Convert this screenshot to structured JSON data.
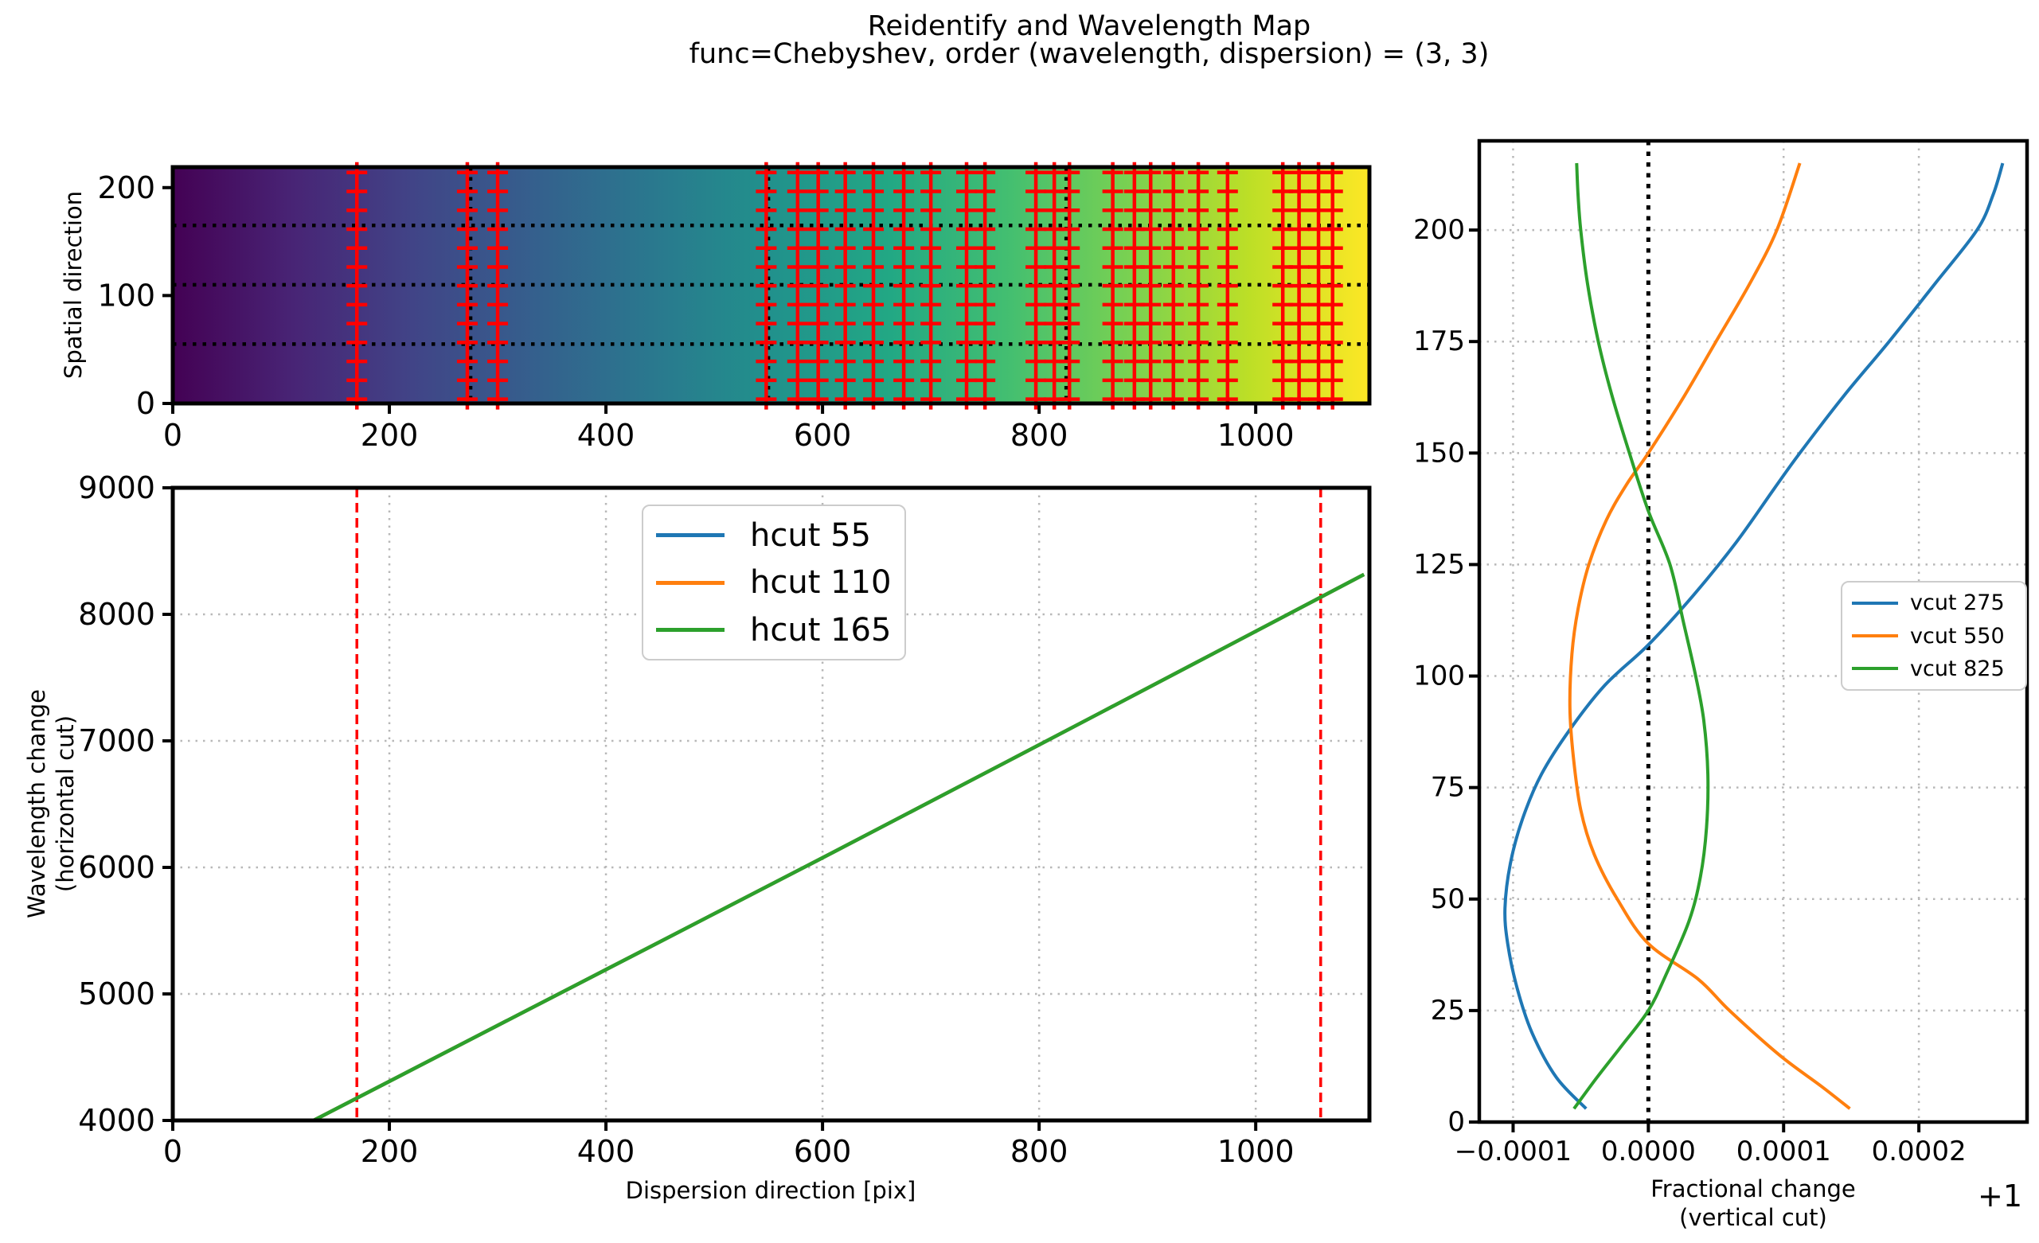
{
  "title": {
    "line1": "Reidentify and Wavelength Map",
    "line2": "func=Chebyshev, order (wavelength, dispersion) = (3, 3)"
  },
  "colors": {
    "blue": "#1f77b4",
    "orange": "#ff7f0e",
    "green": "#2ca02c",
    "red": "#ff0000",
    "grid_gray": "#b8b8b8",
    "black": "#000000",
    "legend_border": "#cccccc",
    "viridis": [
      "#440154",
      "#482475",
      "#414487",
      "#355f8d",
      "#2a788e",
      "#21918c",
      "#22a884",
      "#44bf70",
      "#7ad151",
      "#bddf26",
      "#fde725"
    ]
  },
  "axes": {
    "map": {
      "ylabel": "Spatial direction",
      "xticklabels": [
        "0",
        "200",
        "400",
        "600",
        "800",
        "1000"
      ],
      "yticklabels": [
        "0",
        "100",
        "200"
      ]
    },
    "wave": {
      "xlabel": "Dispersion direction [pix]",
      "ylabel_line1": "Wavelength change",
      "ylabel_line2": "(horizontal cut)",
      "xticklabels": [
        "0",
        "200",
        "400",
        "600",
        "800",
        "1000"
      ],
      "yticklabels": [
        "4000",
        "5000",
        "6000",
        "7000",
        "8000",
        "9000"
      ],
      "legend": [
        "hcut 55",
        "hcut 110",
        "hcut 165"
      ]
    },
    "frac": {
      "xlabel_line1": "Fractional change",
      "xlabel_line2": "(vertical cut)",
      "xticklabels": [
        "−0.0001",
        "0.0000",
        "0.0001",
        "0.0002"
      ],
      "yticklabels": [
        "0",
        "25",
        "50",
        "75",
        "100",
        "125",
        "150",
        "175",
        "200"
      ],
      "legend": [
        "vcut 275",
        "vcut 550",
        "vcut 825"
      ],
      "offset_text": "+1"
    }
  },
  "chart_data": [
    {
      "id": "reidentify_wavelength_map",
      "type": "heatmap",
      "ylabel": "Spatial direction",
      "xlim": [
        0,
        1105
      ],
      "ylim": [
        0,
        219
      ],
      "xticks": [
        0,
        200,
        400,
        600,
        800,
        1000
      ],
      "yticks": [
        0,
        100,
        200
      ],
      "colormap": "viridis",
      "gradient_direction": "dark purple at x=0 to yellow at x=1100",
      "identified_line_x": [
        170,
        272,
        300,
        548,
        577,
        596,
        621,
        647,
        675,
        700,
        733,
        750,
        797,
        814,
        828,
        868,
        888,
        903,
        924,
        947,
        974,
        1025,
        1040,
        1058,
        1071
      ],
      "marker": "red plus columns",
      "marker_y_start": 4,
      "marker_y_step": 17.5,
      "marker_y_count": 13,
      "hcut_y": [
        55,
        110,
        165
      ],
      "vcut_x": [
        275,
        550,
        825
      ]
    },
    {
      "id": "wavelength_change_horizontal_cut",
      "type": "line",
      "xlabel": "Dispersion direction [pix]",
      "ylabel": "Wavelength change (horizontal cut)",
      "xlim": [
        0,
        1105
      ],
      "ylim": [
        4000,
        9000
      ],
      "xticks": [
        0,
        200,
        400,
        600,
        800,
        1000
      ],
      "yticks": [
        4000,
        5000,
        6000,
        7000,
        8000,
        9000
      ],
      "grid": true,
      "red_dashed_x": [
        170,
        1060
      ],
      "note": "three hcut curves overlap almost exactly; green drawn on top",
      "series": [
        {
          "name": "hcut 55",
          "color": "#1f77b4",
          "points": [
            [
              130,
              4000
            ],
            [
              370,
              5060
            ],
            [
              610,
              6120
            ],
            [
              855,
              7215
            ],
            [
              1100,
              8315
            ]
          ]
        },
        {
          "name": "hcut 110",
          "color": "#ff7f0e",
          "points": [
            [
              130,
              4000
            ],
            [
              370,
              5060
            ],
            [
              610,
              6120
            ],
            [
              855,
              7215
            ],
            [
              1100,
              8315
            ]
          ]
        },
        {
          "name": "hcut 165",
          "color": "#2ca02c",
          "points": [
            [
              130,
              4000
            ],
            [
              370,
              5060
            ],
            [
              610,
              6120
            ],
            [
              855,
              7215
            ],
            [
              1100,
              8315
            ]
          ]
        }
      ],
      "legend_position": "upper center"
    },
    {
      "id": "fractional_change_vertical_cut",
      "type": "line",
      "xlabel": "Fractional change (vertical cut)",
      "x_offset_label": "+1",
      "x_unit": 0.0001,
      "xlim": [
        -1.25,
        2.8
      ],
      "ylim": [
        0,
        220
      ],
      "xticks": [
        -1,
        0,
        1,
        2
      ],
      "yticks": [
        0,
        25,
        50,
        75,
        100,
        125,
        150,
        175,
        200
      ],
      "grid": true,
      "zero_line_x": 0,
      "series": [
        {
          "name": "vcut 275",
          "color": "#1f77b4",
          "points": [
            [
              -0.46,
              3
            ],
            [
              -0.68,
              10
            ],
            [
              -0.86,
              20
            ],
            [
              -0.97,
              30
            ],
            [
              -1.04,
              40
            ],
            [
              -1.06,
              48
            ],
            [
              -1.02,
              58
            ],
            [
              -0.93,
              68
            ],
            [
              -0.79,
              78
            ],
            [
              -0.58,
              88
            ],
            [
              -0.32,
              98
            ],
            [
              0,
              107
            ],
            [
              0.33,
              118
            ],
            [
              0.65,
              130
            ],
            [
              0.93,
              142
            ],
            [
              1.12,
              150
            ],
            [
              1.45,
              163
            ],
            [
              1.78,
              175
            ],
            [
              2.12,
              188
            ],
            [
              2.43,
              200
            ],
            [
              2.55,
              208
            ],
            [
              2.62,
              215
            ]
          ]
        },
        {
          "name": "vcut 550",
          "color": "#ff7f0e",
          "points": [
            [
              1.49,
              3
            ],
            [
              1.28,
              8
            ],
            [
              0.97,
              15
            ],
            [
              0.6,
              25
            ],
            [
              0.37,
              32
            ],
            [
              0,
              40
            ],
            [
              -0.23,
              50
            ],
            [
              -0.4,
              60
            ],
            [
              -0.5,
              70
            ],
            [
              -0.555,
              82
            ],
            [
              -0.58,
              93
            ],
            [
              -0.565,
              105
            ],
            [
              -0.52,
              115
            ],
            [
              -0.44,
              125
            ],
            [
              -0.31,
              135
            ],
            [
              -0.16,
              143
            ],
            [
              0,
              150
            ],
            [
              0.25,
              162
            ],
            [
              0.5,
              175
            ],
            [
              0.75,
              188
            ],
            [
              0.95,
              200
            ],
            [
              1.12,
              215
            ]
          ]
        },
        {
          "name": "vcut 825",
          "color": "#2ca02c",
          "points": [
            [
              -0.55,
              3
            ],
            [
              -0.38,
              10
            ],
            [
              -0.2,
              17
            ],
            [
              0,
              25
            ],
            [
              0.13,
              33
            ],
            [
              0.3,
              45
            ],
            [
              0.385,
              55
            ],
            [
              0.43,
              66
            ],
            [
              0.44,
              78
            ],
            [
              0.41,
              90
            ],
            [
              0.35,
              100
            ],
            [
              0.26,
              112
            ],
            [
              0.16,
              125
            ],
            [
              0,
              137
            ],
            [
              -0.14,
              150
            ],
            [
              -0.27,
              163
            ],
            [
              -0.37,
              175
            ],
            [
              -0.45,
              188
            ],
            [
              -0.5,
              200
            ],
            [
              -0.52,
              208
            ],
            [
              -0.53,
              215
            ]
          ]
        }
      ],
      "legend_position": "center right"
    }
  ]
}
